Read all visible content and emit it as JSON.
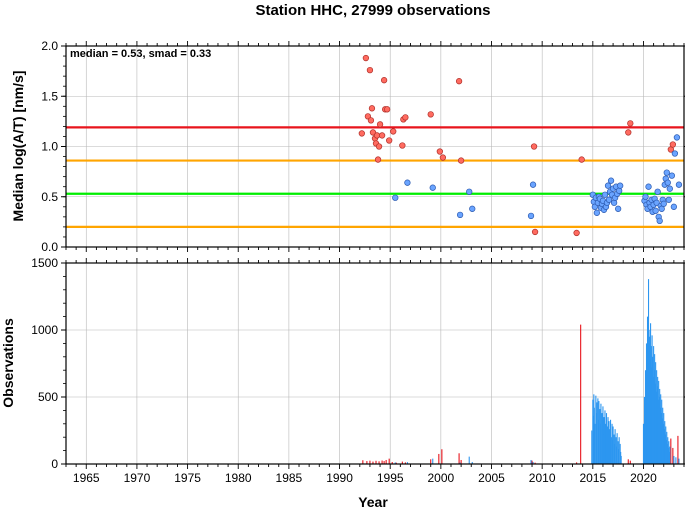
{
  "title": "Station HHC, 27999 observations",
  "chart_data": [
    {
      "type": "scatter",
      "ylabel": "Median log(A/T) [nm/s]",
      "annotation": "median = 0.53, smad = 0.33",
      "xlim": [
        1963,
        2024
      ],
      "ylim": [
        0,
        2
      ],
      "yticks": [
        "0.0",
        "0.5",
        "1.0",
        "1.5",
        "2.0"
      ],
      "grid": true,
      "reference_lines": [
        {
          "y": 1.19,
          "color": "#e8141c"
        },
        {
          "y": 0.86,
          "color": "#ffa500"
        },
        {
          "y": 0.53,
          "color": "#00ee00"
        },
        {
          "y": 0.2,
          "color": "#ffa500"
        }
      ],
      "series": [
        {
          "color": "#ff6b60",
          "points": [
            [
              1992.2,
              1.13
            ],
            [
              1992.6,
              1.88
            ],
            [
              1992.8,
              1.3
            ],
            [
              1993.0,
              1.76
            ],
            [
              1993.1,
              1.26
            ],
            [
              1993.2,
              1.38
            ],
            [
              1993.3,
              1.14
            ],
            [
              1993.5,
              1.08
            ],
            [
              1993.6,
              1.03
            ],
            [
              1993.7,
              1.11
            ],
            [
              1993.8,
              0.87
            ],
            [
              1993.9,
              1.0
            ],
            [
              1994.0,
              1.22
            ],
            [
              1994.2,
              1.11
            ],
            [
              1994.4,
              1.66
            ],
            [
              1994.5,
              1.37
            ],
            [
              1994.7,
              1.37
            ],
            [
              1994.9,
              1.06
            ],
            [
              1995.3,
              1.15
            ],
            [
              1996.2,
              1.01
            ],
            [
              1996.3,
              1.27
            ],
            [
              1996.5,
              1.29
            ],
            [
              1999.0,
              1.32
            ],
            [
              1999.9,
              0.95
            ],
            [
              2000.2,
              0.89
            ],
            [
              2001.8,
              1.65
            ],
            [
              2002.0,
              0.86
            ],
            [
              2009.2,
              1.0
            ],
            [
              2009.3,
              0.15
            ],
            [
              2013.4,
              0.14
            ],
            [
              2013.9,
              0.87
            ],
            [
              2018.5,
              1.14
            ],
            [
              2018.7,
              1.23
            ],
            [
              2022.7,
              0.97
            ],
            [
              2022.9,
              1.02
            ]
          ]
        },
        {
          "color": "#6aa4ff",
          "points": [
            [
              1995.5,
              0.49
            ],
            [
              1996.7,
              0.64
            ],
            [
              1999.2,
              0.59
            ],
            [
              2001.9,
              0.32
            ],
            [
              2002.8,
              0.55
            ],
            [
              2003.1,
              0.38
            ],
            [
              2008.9,
              0.31
            ],
            [
              2009.1,
              0.62
            ],
            [
              2015.0,
              0.52
            ],
            [
              2015.1,
              0.45
            ],
            [
              2015.2,
              0.4
            ],
            [
              2015.3,
              0.49
            ],
            [
              2015.4,
              0.34
            ],
            [
              2015.5,
              0.44
            ],
            [
              2015.6,
              0.5
            ],
            [
              2015.7,
              0.48
            ],
            [
              2015.8,
              0.39
            ],
            [
              2015.9,
              0.43
            ],
            [
              2016.0,
              0.46
            ],
            [
              2016.1,
              0.37
            ],
            [
              2016.2,
              0.52
            ],
            [
              2016.3,
              0.4
            ],
            [
              2016.4,
              0.44
            ],
            [
              2016.5,
              0.61
            ],
            [
              2016.6,
              0.47
            ],
            [
              2016.7,
              0.55
            ],
            [
              2016.8,
              0.66
            ],
            [
              2016.9,
              0.52
            ],
            [
              2017.0,
              0.58
            ],
            [
              2017.1,
              0.44
            ],
            [
              2017.2,
              0.49
            ],
            [
              2017.3,
              0.6
            ],
            [
              2017.4,
              0.53
            ],
            [
              2017.5,
              0.38
            ],
            [
              2017.6,
              0.56
            ],
            [
              2017.7,
              0.61
            ],
            [
              2020.1,
              0.46
            ],
            [
              2020.2,
              0.5
            ],
            [
              2020.3,
              0.42
            ],
            [
              2020.4,
              0.38
            ],
            [
              2020.5,
              0.6
            ],
            [
              2020.6,
              0.44
            ],
            [
              2020.7,
              0.4
            ],
            [
              2020.8,
              0.47
            ],
            [
              2020.9,
              0.35
            ],
            [
              2021.0,
              0.42
            ],
            [
              2021.1,
              0.48
            ],
            [
              2021.2,
              0.36
            ],
            [
              2021.3,
              0.44
            ],
            [
              2021.4,
              0.55
            ],
            [
              2021.5,
              0.3
            ],
            [
              2021.6,
              0.26
            ],
            [
              2021.7,
              0.41
            ],
            [
              2021.8,
              0.38
            ],
            [
              2021.9,
              0.47
            ],
            [
              2022.0,
              0.43
            ],
            [
              2022.1,
              0.62
            ],
            [
              2022.2,
              0.68
            ],
            [
              2022.3,
              0.74
            ],
            [
              2022.4,
              0.64
            ],
            [
              2022.5,
              0.47
            ],
            [
              2022.6,
              0.58
            ],
            [
              2022.8,
              0.71
            ],
            [
              2023.0,
              0.4
            ],
            [
              2023.1,
              0.93
            ],
            [
              2023.3,
              1.09
            ],
            [
              2023.5,
              0.62
            ]
          ]
        }
      ]
    },
    {
      "type": "bar",
      "xlabel": "Year",
      "ylabel": "Observations",
      "xlim": [
        1963,
        2024
      ],
      "ylim": [
        0,
        1500
      ],
      "yticks": [
        "0",
        "500",
        "1000",
        "1500"
      ],
      "xticks": [
        "1965",
        "1970",
        "1975",
        "1980",
        "1985",
        "1990",
        "1995",
        "2000",
        "2005",
        "2010",
        "2015",
        "2020"
      ],
      "grid": true,
      "series": [
        {
          "color": "#e8141c",
          "points": [
            [
              1992.3,
              28
            ],
            [
              1992.7,
              22
            ],
            [
              1993.0,
              25
            ],
            [
              1993.3,
              18
            ],
            [
              1993.6,
              24
            ],
            [
              1993.9,
              20
            ],
            [
              1994.2,
              26
            ],
            [
              1994.4,
              22
            ],
            [
              1994.6,
              30
            ],
            [
              1994.9,
              40
            ],
            [
              1995.2,
              15
            ],
            [
              1995.6,
              10
            ],
            [
              1996.2,
              18
            ],
            [
              1996.5,
              12
            ],
            [
              1999.0,
              35
            ],
            [
              1999.8,
              75
            ],
            [
              2000.1,
              110
            ],
            [
              2001.8,
              80
            ],
            [
              2002.0,
              30
            ],
            [
              2009.0,
              25
            ],
            [
              2009.3,
              10
            ],
            [
              2013.4,
              12
            ],
            [
              2013.8,
              1040
            ],
            [
              2018.5,
              35
            ],
            [
              2018.7,
              25
            ],
            [
              2022.7,
              190
            ],
            [
              2022.9,
              120
            ],
            [
              2023.4,
              210
            ]
          ]
        },
        {
          "color": "#2c96f0",
          "points": [
            [
              1995.5,
              12
            ],
            [
              1996.7,
              14
            ],
            [
              1999.2,
              40
            ],
            [
              2001.9,
              10
            ],
            [
              2002.8,
              55
            ],
            [
              2003.1,
              15
            ],
            [
              2008.9,
              30
            ],
            [
              2009.1,
              15
            ],
            [
              2014.9,
              250
            ],
            [
              2015.0,
              480
            ],
            [
              2015.05,
              360
            ],
            [
              2015.1,
              520
            ],
            [
              2015.15,
              420
            ],
            [
              2015.2,
              300
            ],
            [
              2015.3,
              510
            ],
            [
              2015.35,
              380
            ],
            [
              2015.4,
              460
            ],
            [
              2015.5,
              490
            ],
            [
              2015.55,
              330
            ],
            [
              2015.6,
              470
            ],
            [
              2015.7,
              410
            ],
            [
              2015.75,
              300
            ],
            [
              2015.8,
              450
            ],
            [
              2015.9,
              380
            ],
            [
              2015.95,
              260
            ],
            [
              2016.0,
              430
            ],
            [
              2016.1,
              350
            ],
            [
              2016.15,
              220
            ],
            [
              2016.2,
              400
            ],
            [
              2016.3,
              300
            ],
            [
              2016.35,
              380
            ],
            [
              2016.4,
              280
            ],
            [
              2016.5,
              350
            ],
            [
              2016.55,
              240
            ],
            [
              2016.6,
              320
            ],
            [
              2016.7,
              260
            ],
            [
              2016.75,
              330
            ],
            [
              2016.8,
              200
            ],
            [
              2016.9,
              300
            ],
            [
              2016.95,
              180
            ],
            [
              2017.0,
              280
            ],
            [
              2017.1,
              220
            ],
            [
              2017.15,
              150
            ],
            [
              2017.2,
              260
            ],
            [
              2017.3,
              200
            ],
            [
              2017.35,
              130
            ],
            [
              2017.4,
              230
            ],
            [
              2017.5,
              170
            ],
            [
              2017.55,
              110
            ],
            [
              2017.6,
              200
            ],
            [
              2017.7,
              150
            ],
            [
              2017.75,
              90
            ],
            [
              2017.8,
              60
            ],
            [
              2020.0,
              300
            ],
            [
              2020.1,
              500
            ],
            [
              2020.15,
              450
            ],
            [
              2020.2,
              700
            ],
            [
              2020.25,
              560
            ],
            [
              2020.3,
              900
            ],
            [
              2020.35,
              750
            ],
            [
              2020.4,
              1100
            ],
            [
              2020.45,
              850
            ],
            [
              2020.5,
              1380
            ],
            [
              2020.55,
              1000
            ],
            [
              2020.6,
              950
            ],
            [
              2020.65,
              780
            ],
            [
              2020.7,
              1050
            ],
            [
              2020.75,
              880
            ],
            [
              2020.8,
              720
            ],
            [
              2020.85,
              960
            ],
            [
              2020.9,
              800
            ],
            [
              2020.95,
              650
            ],
            [
              2021.0,
              880
            ],
            [
              2021.05,
              700
            ],
            [
              2021.1,
              820
            ],
            [
              2021.15,
              600
            ],
            [
              2021.2,
              760
            ],
            [
              2021.25,
              540
            ],
            [
              2021.3,
              700
            ],
            [
              2021.35,
              580
            ],
            [
              2021.4,
              650
            ],
            [
              2021.45,
              480
            ],
            [
              2021.5,
              620
            ],
            [
              2021.55,
              500
            ],
            [
              2021.6,
              560
            ],
            [
              2021.65,
              420
            ],
            [
              2021.7,
              520
            ],
            [
              2021.75,
              380
            ],
            [
              2021.8,
              480
            ],
            [
              2021.85,
              340
            ],
            [
              2021.9,
              420
            ],
            [
              2021.95,
              300
            ],
            [
              2022.0,
              380
            ],
            [
              2022.05,
              260
            ],
            [
              2022.1,
              320
            ],
            [
              2022.15,
              220
            ],
            [
              2022.2,
              280
            ],
            [
              2022.25,
              180
            ],
            [
              2022.3,
              240
            ],
            [
              2022.35,
              150
            ],
            [
              2022.4,
              200
            ],
            [
              2022.45,
              120
            ],
            [
              2022.5,
              170
            ],
            [
              2022.55,
              90
            ],
            [
              2022.6,
              130
            ],
            [
              2023.0,
              60
            ],
            [
              2023.2,
              50
            ],
            [
              2023.5,
              40
            ]
          ]
        }
      ]
    }
  ]
}
